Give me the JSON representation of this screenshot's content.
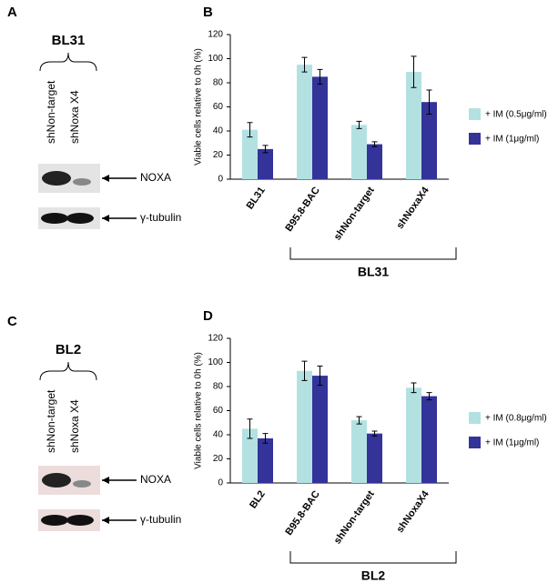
{
  "blots": [
    {
      "panel": "A",
      "group": "BL31",
      "lanes": [
        "shNon-target",
        "shNoxa X4"
      ],
      "bands": [
        "NOXA",
        "γ-tubulin"
      ]
    },
    {
      "panel": "C",
      "group": "BL2",
      "lanes": [
        "shNon-target",
        "shNoxa X4"
      ],
      "bands": [
        "NOXA",
        "γ-tubulin"
      ]
    }
  ],
  "chart_data": [
    {
      "panel": "B",
      "type": "bar",
      "ylabel": "Viable cells relative to 0h (%)",
      "group_label": "BL31",
      "categories": [
        "BL31",
        "B95.8-BAC",
        "shNon-target",
        "shNoxaX4"
      ],
      "series": [
        {
          "name": "+ IM (0.5μg/ml)",
          "color": "#b3e1e1",
          "values": [
            41,
            95,
            45,
            89
          ],
          "errors": [
            6,
            6,
            3,
            13
          ]
        },
        {
          "name": "+ IM (1μg/ml)",
          "color": "#33339a",
          "values": [
            25,
            85,
            29,
            64
          ],
          "errors": [
            3,
            6,
            2,
            10
          ]
        }
      ],
      "ylim": [
        0,
        120
      ],
      "yticks": [
        0,
        20,
        40,
        60,
        80,
        100,
        120
      ]
    },
    {
      "panel": "D",
      "type": "bar",
      "ylabel": "Viable cells relative to 0h (%)",
      "group_label": "BL2",
      "categories": [
        "BL2",
        "B95.8-BAC",
        "shNon-target",
        "shNoxaX4"
      ],
      "series": [
        {
          "name": "+ IM (0.8μg/ml)",
          "color": "#b3e1e1",
          "values": [
            45,
            93,
            52,
            79
          ],
          "errors": [
            8,
            8,
            3,
            4
          ]
        },
        {
          "name": "+ IM (1μg/ml)",
          "color": "#33339a",
          "values": [
            37,
            89,
            41,
            72
          ],
          "errors": [
            4,
            8,
            2,
            3
          ]
        }
      ],
      "ylim": [
        0,
        120
      ],
      "yticks": [
        0,
        20,
        40,
        60,
        80,
        100,
        120
      ]
    }
  ]
}
